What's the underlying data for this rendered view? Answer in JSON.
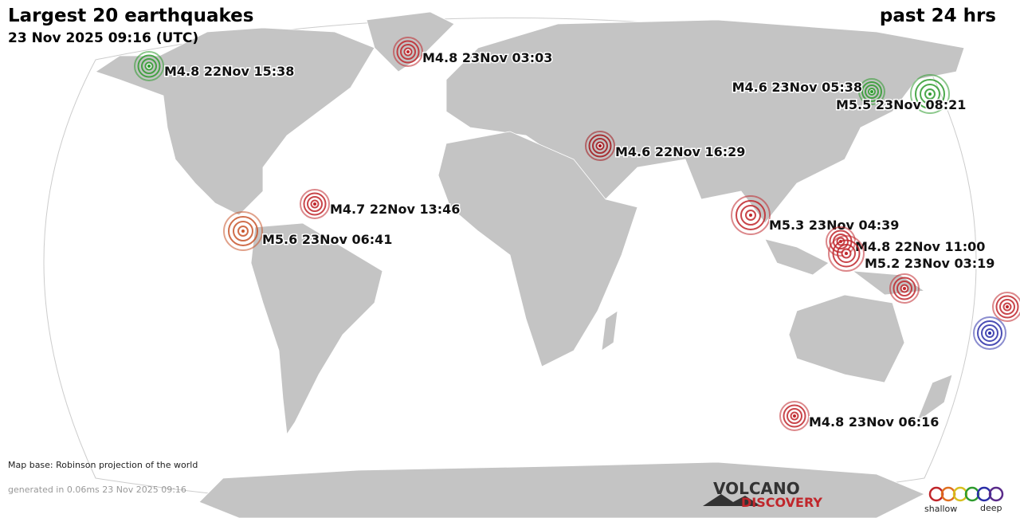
{
  "header": {
    "title": "Largest 20 earthquakes",
    "subtitle": "23 Nov 2025 09:16 (UTC)",
    "period": "past 24 hrs"
  },
  "quakes": [
    {
      "label": "M4.8 22Nov 15:38",
      "color": "#2e9b2e"
    },
    {
      "label": "M4.8 23Nov 03:03",
      "color": "#c0262b"
    },
    {
      "label": "M4.6 23Nov 05:38",
      "color": "#2e9b2e"
    },
    {
      "label": "M5.5 23Nov 08:21",
      "color": "#2e9b2e"
    },
    {
      "label": "M4.6 22Nov 16:29",
      "color": "#a3161b"
    },
    {
      "label": "M4.7 22Nov 13:46",
      "color": "#c0262b"
    },
    {
      "label": "M5.6 23Nov 06:41",
      "color": "#c8552b"
    },
    {
      "label": "M5.3 23Nov 04:39",
      "color": "#c0262b"
    },
    {
      "label": "M4.8 22Nov 11:00",
      "color": "#c0262b"
    },
    {
      "label": "M5.2 23Nov 03:19",
      "color": "#c0262b"
    },
    {
      "color": "#c0262b"
    },
    {
      "color": "#c0262b"
    },
    {
      "color": "#2b2fa8"
    },
    {
      "label": "M4.8 23Nov 06:16",
      "color": "#c0262b"
    }
  ],
  "footer": {
    "map_base": "Map base: Robinson projection of the world",
    "generated": "generated in 0.06ms 23 Nov 2025 09:16"
  },
  "logo": {
    "line1": "VOLCANO",
    "line2": "DISCOVERY"
  },
  "legend": {
    "shallow": "shallow",
    "deep": "deep"
  }
}
